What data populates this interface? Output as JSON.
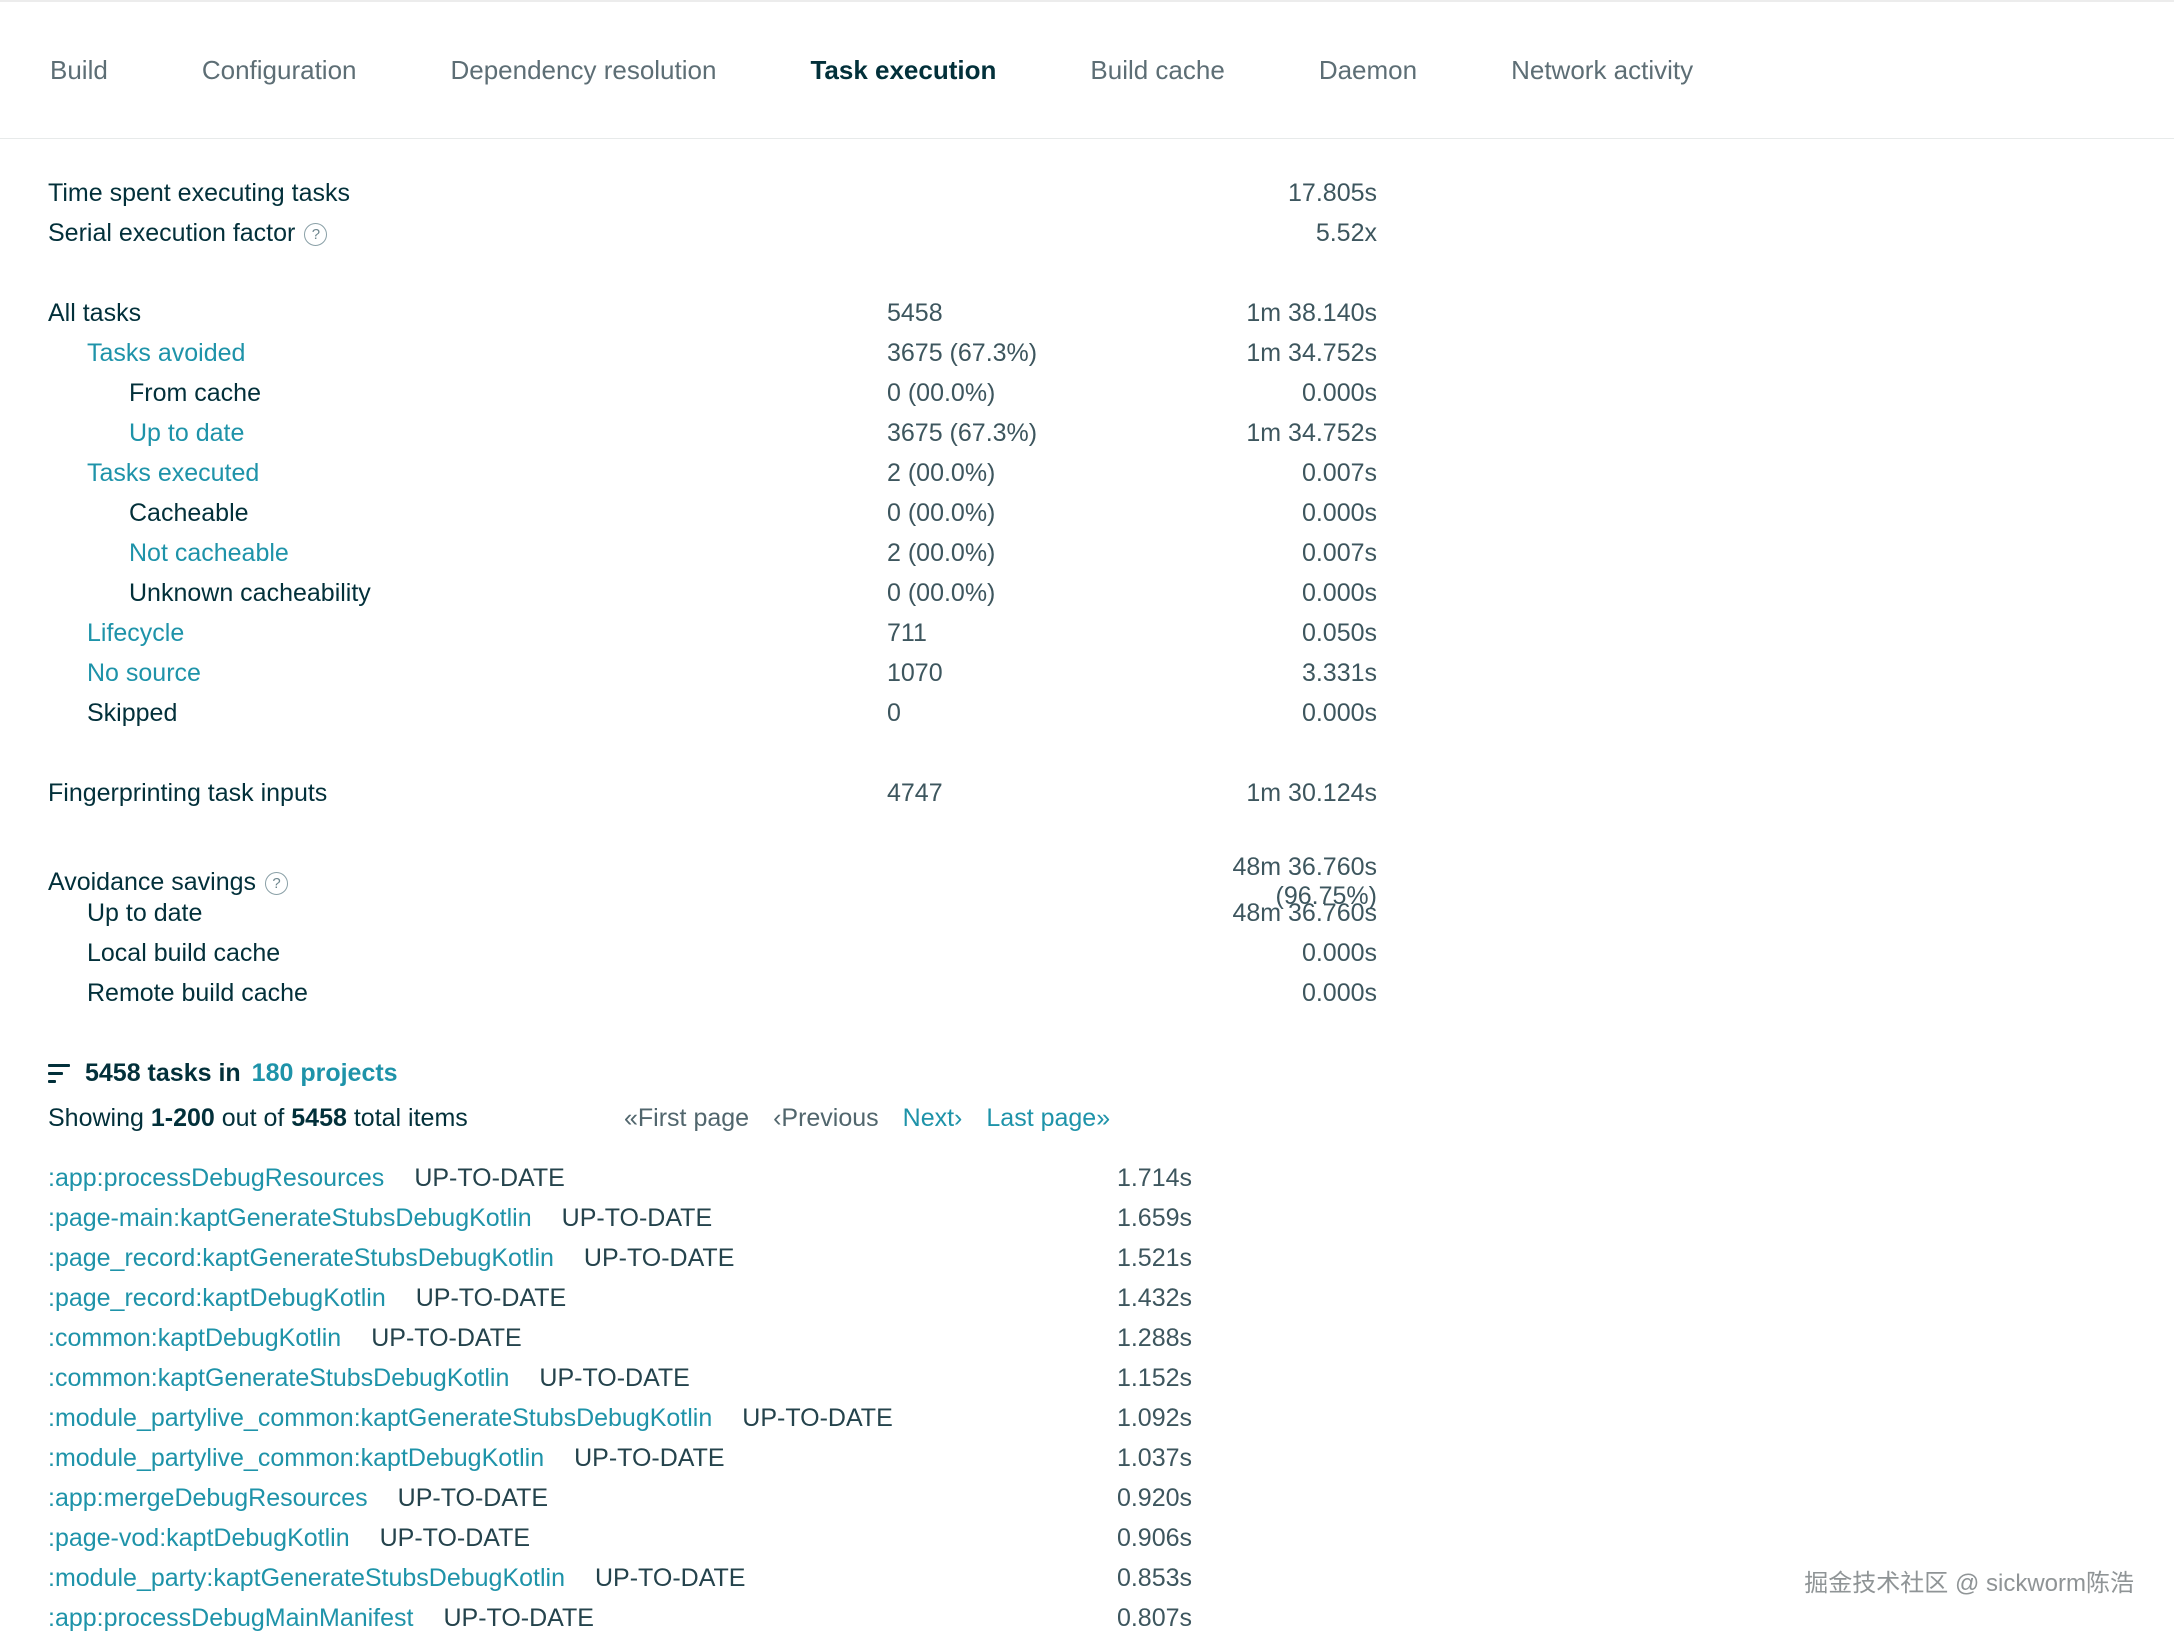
{
  "colors": {
    "accent": "#1e93a9",
    "text": "#02303a"
  },
  "nav": {
    "active_tab": "Task execution",
    "tabs": [
      {
        "label": "Build"
      },
      {
        "label": "Configuration"
      },
      {
        "label": "Dependency resolution"
      },
      {
        "label": "Task execution"
      },
      {
        "label": "Build cache"
      },
      {
        "label": "Daemon"
      },
      {
        "label": "Network activity"
      }
    ]
  },
  "summary": {
    "time_spent_label": "Time spent executing tasks",
    "time_spent_value": "17.805s",
    "serial_factor_label": "Serial execution factor",
    "serial_factor_value": "5.52x"
  },
  "breakdown": {
    "rows": [
      {
        "label": "All tasks",
        "count": "5458",
        "time": "1m 38.140s"
      },
      {
        "label": "Tasks avoided",
        "count": "3675 (67.3%)",
        "time": "1m 34.752s"
      },
      {
        "label": "From cache",
        "count": "0 (00.0%)",
        "time": "0.000s"
      },
      {
        "label": "Up to date",
        "count": "3675 (67.3%)",
        "time": "1m 34.752s"
      },
      {
        "label": "Tasks executed",
        "count": "2 (00.0%)",
        "time": "0.007s"
      },
      {
        "label": "Cacheable",
        "count": "0 (00.0%)",
        "time": "0.000s"
      },
      {
        "label": "Not cacheable",
        "count": "2 (00.0%)",
        "time": "0.007s"
      },
      {
        "label": "Unknown cacheability",
        "count": "0 (00.0%)",
        "time": "0.000s"
      },
      {
        "label": "Lifecycle",
        "count": "711",
        "time": "0.050s"
      },
      {
        "label": "No source",
        "count": "1070",
        "time": "3.331s"
      },
      {
        "label": "Skipped",
        "count": "0",
        "time": "0.000s"
      }
    ]
  },
  "fingerprinting": {
    "label": "Fingerprinting task inputs",
    "count": "4747",
    "time": "1m 30.124s"
  },
  "avoidance": {
    "title": "Avoidance savings",
    "total_time": "48m 36.760s (96.75%)",
    "rows": [
      {
        "label": "Up to date",
        "time": "48m 36.760s"
      },
      {
        "label": "Local build cache",
        "time": "0.000s"
      },
      {
        "label": "Remote build cache",
        "time": "0.000s"
      }
    ]
  },
  "task_list": {
    "header_text": "5458 tasks in",
    "header_link": "180 projects",
    "showing_prefix": "Showing",
    "showing_range": "1-200",
    "showing_mid": "out of",
    "showing_total": "5458",
    "showing_suffix": "total items",
    "pager": {
      "first": "«First page",
      "previous": "‹Previous",
      "next": "Next›",
      "last": "Last page»"
    },
    "items": [
      {
        "name": ":app:processDebugResources",
        "status": "UP-TO-DATE",
        "time": "1.714s"
      },
      {
        "name": ":page-main:kaptGenerateStubsDebugKotlin",
        "status": "UP-TO-DATE",
        "time": "1.659s"
      },
      {
        "name": ":page_record:kaptGenerateStubsDebugKotlin",
        "status": "UP-TO-DATE",
        "time": "1.521s"
      },
      {
        "name": ":page_record:kaptDebugKotlin",
        "status": "UP-TO-DATE",
        "time": "1.432s"
      },
      {
        "name": ":common:kaptDebugKotlin",
        "status": "UP-TO-DATE",
        "time": "1.288s"
      },
      {
        "name": ":common:kaptGenerateStubsDebugKotlin",
        "status": "UP-TO-DATE",
        "time": "1.152s"
      },
      {
        "name": ":module_partylive_common:kaptGenerateStubsDebugKotlin",
        "status": "UP-TO-DATE",
        "time": "1.092s"
      },
      {
        "name": ":module_partylive_common:kaptDebugKotlin",
        "status": "UP-TO-DATE",
        "time": "1.037s"
      },
      {
        "name": ":app:mergeDebugResources",
        "status": "UP-TO-DATE",
        "time": "0.920s"
      },
      {
        "name": ":page-vod:kaptDebugKotlin",
        "status": "UP-TO-DATE",
        "time": "0.906s"
      },
      {
        "name": ":module_party:kaptGenerateStubsDebugKotlin",
        "status": "UP-TO-DATE",
        "time": "0.853s"
      },
      {
        "name": ":app:processDebugMainManifest",
        "status": "UP-TO-DATE",
        "time": "0.807s"
      }
    ]
  },
  "watermark": "掘金技术社区 @ sickworm陈浩"
}
